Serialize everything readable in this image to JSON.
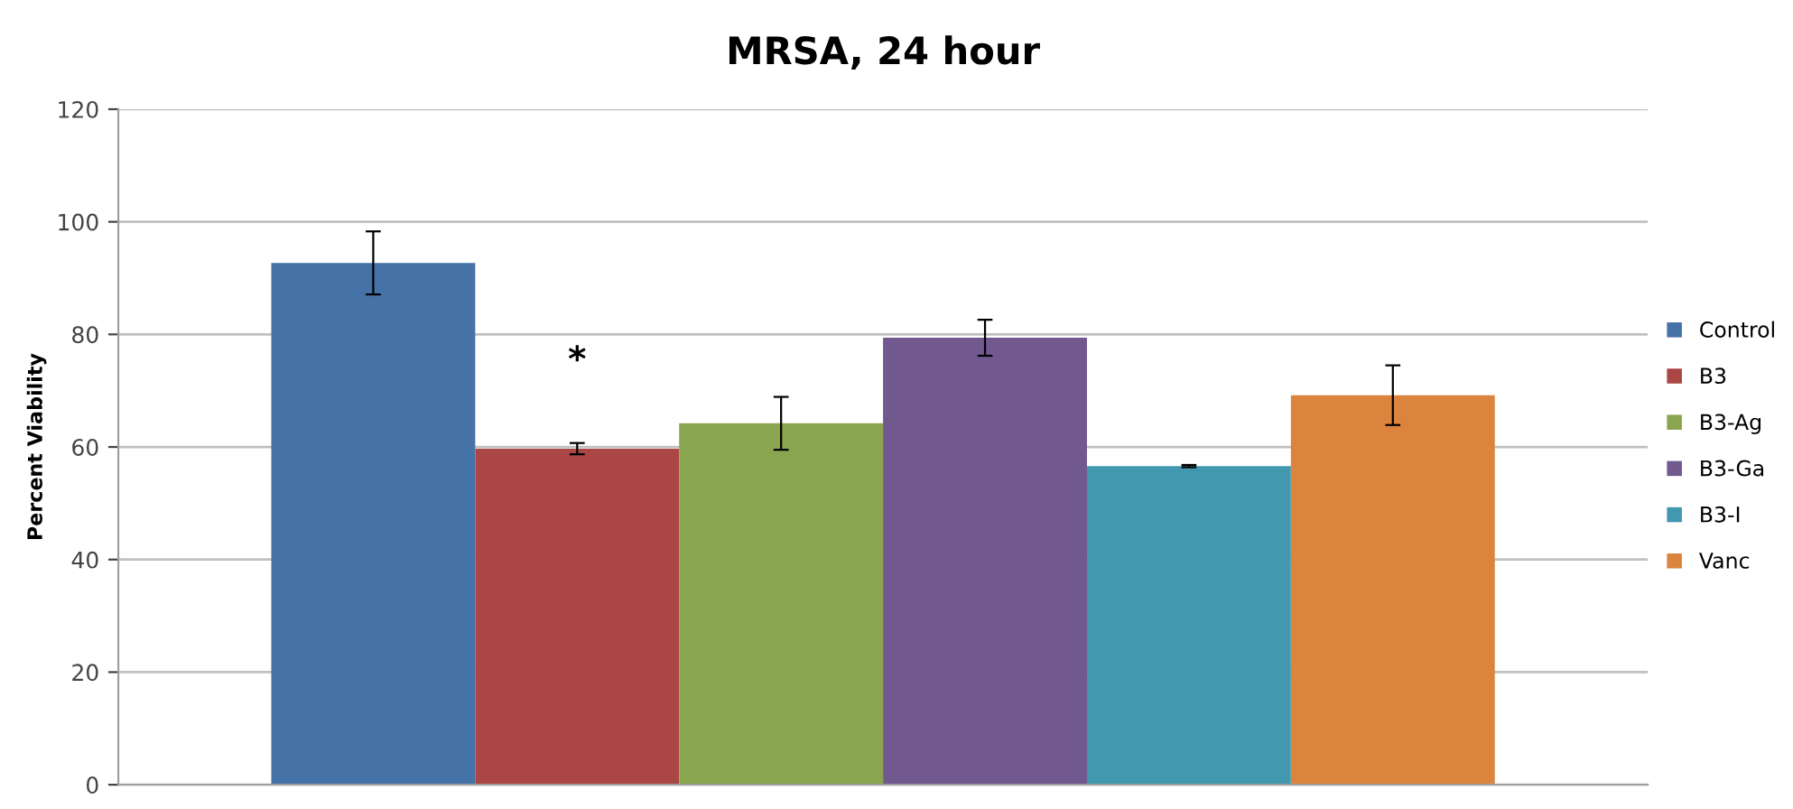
{
  "chart_data": {
    "type": "bar",
    "title": "MRSA, 24 hour",
    "ylabel": "Percent Viability",
    "categories": [
      null
    ],
    "series": [
      {
        "name": "Control",
        "color": "#4572a7",
        "values": [
          92.7
        ],
        "errors": [
          5.6
        ]
      },
      {
        "name": "B3",
        "color": "#aa4643",
        "values": [
          59.7
        ],
        "errors": [
          1.0
        ],
        "value_labels": [
          "*"
        ]
      },
      {
        "name": "B3-Ag",
        "color": "#89a54e",
        "values": [
          64.2
        ],
        "errors": [
          4.7
        ]
      },
      {
        "name": "B3-Ga",
        "color": "#71588f",
        "values": [
          79.4
        ],
        "errors": [
          3.2
        ]
      },
      {
        "name": "B3-I",
        "color": "#4198af",
        "values": [
          56.6
        ],
        "errors": [
          0.2
        ]
      },
      {
        "name": "Vanc",
        "color": "#db843d",
        "values": [
          69.2
        ],
        "errors": [
          5.3
        ]
      }
    ],
    "ylim": [
      0,
      120
    ],
    "yticks": [
      0,
      20,
      40,
      60,
      80,
      100,
      120
    ],
    "grid": "y",
    "legend": "right",
    "tick_labels": "y"
  }
}
